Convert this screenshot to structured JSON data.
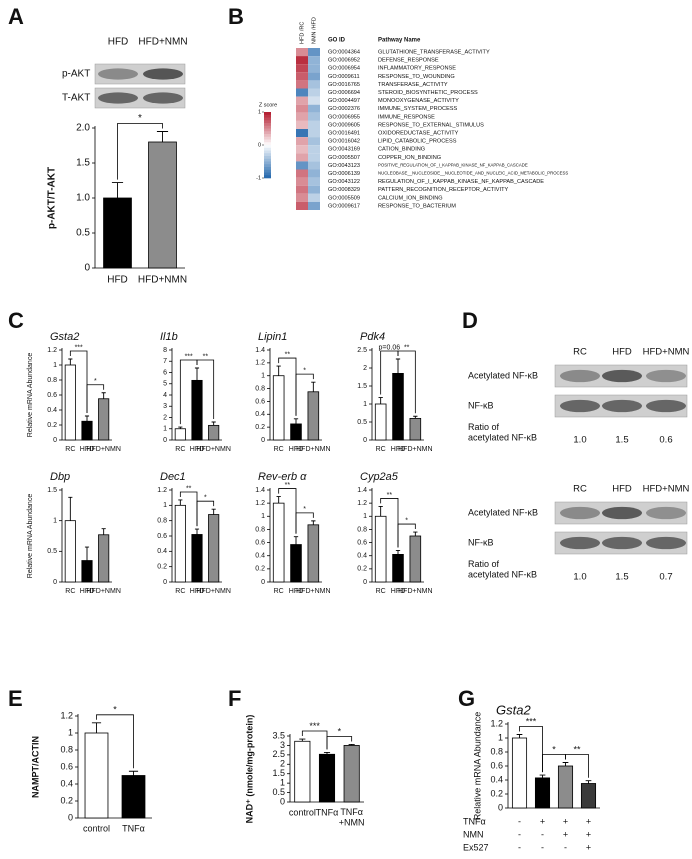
{
  "panel_labels": [
    "A",
    "B",
    "C",
    "D",
    "E",
    "F",
    "G"
  ],
  "chart_data": [
    {
      "type": "bar",
      "ylabel": "p-AKT/T-AKT",
      "categories": [
        "HFD",
        "HFD+NMN"
      ],
      "values": [
        1.0,
        1.8
      ],
      "errors": [
        0.22,
        0.15
      ],
      "colors": [
        "#000000",
        "#8c8c8c"
      ],
      "ylim": [
        0,
        2
      ],
      "yticks": [
        0,
        0.5,
        {
          "value": 1,
          "label": "1.0"
        },
        1.5,
        {
          "value": 2,
          "label": "2.0"
        }
      ],
      "significance": [
        {
          "pair": [
            0,
            1
          ],
          "label": "*"
        }
      ]
    },
    {
      "type": "bar",
      "title": "Gsta2",
      "ylabel": "Relative mRNA Abundance",
      "categories": [
        "RC",
        "HFD",
        "HFD+NMN"
      ],
      "values": [
        1.0,
        0.25,
        0.55
      ],
      "errors": [
        0.08,
        0.07,
        0.08
      ],
      "colors": [
        "#ffffff",
        "#000000",
        "#8c8c8c"
      ],
      "ylim": [
        0,
        1.2
      ],
      "yticks": [
        0,
        0.2,
        0.4,
        0.6,
        0.8,
        1,
        1.2
      ],
      "significance": [
        {
          "pair": [
            0,
            1
          ],
          "label": "***"
        },
        {
          "pair": [
            1,
            2
          ],
          "label": "*"
        }
      ]
    },
    {
      "type": "bar",
      "title": "Il1b",
      "categories": [
        "RC",
        "HFD",
        "HFD+NMN"
      ],
      "values": [
        1.0,
        5.3,
        1.3
      ],
      "errors": [
        0.15,
        1.1,
        0.3
      ],
      "colors": [
        "#ffffff",
        "#000000",
        "#8c8c8c"
      ],
      "ylim": [
        0,
        8
      ],
      "yticks": [
        0,
        1,
        2,
        3,
        4,
        5,
        6,
        7,
        8
      ],
      "significance": [
        {
          "pair": [
            0,
            1
          ],
          "label": "***"
        },
        {
          "pair": [
            1,
            2
          ],
          "label": "**"
        }
      ]
    },
    {
      "type": "bar",
      "title": "Lipin1",
      "categories": [
        "RC",
        "HFD",
        "HFD+NMN"
      ],
      "values": [
        1.0,
        0.25,
        0.75
      ],
      "errors": [
        0.15,
        0.08,
        0.15
      ],
      "colors": [
        "#ffffff",
        "#000000",
        "#8c8c8c"
      ],
      "ylim": [
        0,
        1.4
      ],
      "yticks": [
        0,
        0.2,
        0.4,
        0.6,
        0.8,
        1,
        1.2,
        1.4
      ],
      "significance": [
        {
          "pair": [
            0,
            1
          ],
          "label": "**"
        },
        {
          "pair": [
            1,
            2
          ],
          "label": "*"
        }
      ]
    },
    {
      "type": "bar",
      "title": "Pdk4",
      "categories": [
        "RC",
        "HFD",
        "HFD+NMN"
      ],
      "values": [
        1.0,
        1.85,
        0.6
      ],
      "errors": [
        0.18,
        0.4,
        0.06
      ],
      "colors": [
        "#ffffff",
        "#000000",
        "#8c8c8c"
      ],
      "ylim": [
        0,
        2.5
      ],
      "yticks": [
        0,
        0.5,
        1,
        1.5,
        2,
        2.5
      ],
      "significance": [
        {
          "pair": [
            0,
            1
          ],
          "label": "p=0.06"
        },
        {
          "pair": [
            1,
            2
          ],
          "label": "**"
        }
      ]
    },
    {
      "type": "bar",
      "title": "Dbp",
      "ylabel": "Relative mRNA Abundance",
      "categories": [
        "RC",
        "HFD",
        "HFD+NMN"
      ],
      "values": [
        1.0,
        0.35,
        0.77
      ],
      "errors": [
        0.38,
        0.22,
        0.1
      ],
      "colors": [
        "#ffffff",
        "#000000",
        "#8c8c8c"
      ],
      "ylim": [
        0,
        1.5
      ],
      "yticks": [
        0,
        0.5,
        1,
        1.5
      ],
      "significance": []
    },
    {
      "type": "bar",
      "title": "Dec1",
      "categories": [
        "RC",
        "HFD",
        "HFD+NMN"
      ],
      "values": [
        1.0,
        0.62,
        0.88
      ],
      "errors": [
        0.07,
        0.07,
        0.07
      ],
      "colors": [
        "#ffffff",
        "#000000",
        "#8c8c8c"
      ],
      "ylim": [
        0,
        1.2
      ],
      "yticks": [
        0,
        0.2,
        0.4,
        0.6,
        0.8,
        1,
        1.2
      ],
      "significance": [
        {
          "pair": [
            0,
            1
          ],
          "label": "**"
        },
        {
          "pair": [
            1,
            2
          ],
          "label": "*"
        }
      ]
    },
    {
      "type": "bar",
      "title": "Rev-erb α",
      "categories": [
        "RC",
        "HFD",
        "HFD+NMN"
      ],
      "values": [
        1.2,
        0.57,
        0.87
      ],
      "errors": [
        0.1,
        0.12,
        0.06
      ],
      "colors": [
        "#ffffff",
        "#000000",
        "#8c8c8c"
      ],
      "ylim": [
        0,
        1.4
      ],
      "yticks": [
        0,
        0.2,
        0.4,
        0.6,
        0.8,
        1,
        1.2,
        1.4
      ],
      "significance": [
        {
          "pair": [
            0,
            1
          ],
          "label": "**"
        },
        {
          "pair": [
            1,
            2
          ],
          "label": "*"
        }
      ]
    },
    {
      "type": "bar",
      "title": "Cyp2a5",
      "categories": [
        "RC",
        "HFD",
        "HFD+NMN"
      ],
      "values": [
        1.0,
        0.42,
        0.7
      ],
      "errors": [
        0.15,
        0.06,
        0.06
      ],
      "colors": [
        "#ffffff",
        "#000000",
        "#8c8c8c"
      ],
      "ylim": [
        0,
        1.4
      ],
      "yticks": [
        0,
        0.2,
        0.4,
        0.6,
        0.8,
        1,
        1.2,
        1.4
      ],
      "significance": [
        {
          "pair": [
            0,
            1
          ],
          "label": "**"
        },
        {
          "pair": [
            1,
            2
          ],
          "label": "*"
        }
      ]
    },
    {
      "type": "bar",
      "ylabel": "NAMPT/ACTIN",
      "categories": [
        "control",
        "TNFα"
      ],
      "values": [
        1.0,
        0.5
      ],
      "errors": [
        0.12,
        0.05
      ],
      "colors": [
        "#ffffff",
        "#000000"
      ],
      "ylim": [
        0,
        1.2
      ],
      "yticks": [
        0,
        0.2,
        0.4,
        0.6,
        0.8,
        1,
        1.2
      ],
      "significance": [
        {
          "pair": [
            0,
            1
          ],
          "label": "*"
        }
      ]
    },
    {
      "type": "bar",
      "ylabel": "NAD⁺ (nmole/mg-protein)",
      "categories": [
        "control",
        "TNFα",
        "TNFα\n+NMN"
      ],
      "values": [
        3.22,
        2.53,
        3.0
      ],
      "errors": [
        0.12,
        0.1,
        0.05
      ],
      "colors": [
        "#ffffff",
        "#000000",
        "#8c8c8c"
      ],
      "ylim": [
        0,
        3.5
      ],
      "yticks": [
        0,
        0.5,
        1,
        1.5,
        2,
        2.5,
        3,
        3.5
      ],
      "significance": [
        {
          "pair": [
            0,
            1
          ],
          "label": "***"
        },
        {
          "pair": [
            1,
            2
          ],
          "label": "*"
        }
      ]
    },
    {
      "type": "bar",
      "title": "Gsta2",
      "ylabel": "Relative mRNA Abundance",
      "values": [
        1.0,
        0.43,
        0.6,
        0.35
      ],
      "errors": [
        0.05,
        0.04,
        0.05,
        0.04
      ],
      "colors": [
        "#ffffff",
        "#000000",
        "#8c8c8c",
        "#3a3a3a"
      ],
      "ylim": [
        0,
        1.2
      ],
      "yticks": [
        0,
        0.2,
        0.4,
        0.6,
        0.8,
        1,
        1.2
      ],
      "significance": [
        {
          "pair": [
            0,
            1
          ],
          "label": "***"
        },
        {
          "pair": [
            1,
            2
          ],
          "label": "*"
        },
        {
          "pair": [
            2,
            3
          ],
          "label": "**"
        }
      ],
      "conditions": [
        {
          "name": "TNFα",
          "marks": [
            "-",
            "+",
            "+",
            "+"
          ]
        },
        {
          "name": "NMN",
          "marks": [
            "-",
            "-",
            "+",
            "+"
          ]
        },
        {
          "name": "Ex527",
          "marks": [
            "-",
            "-",
            "-",
            "+"
          ]
        }
      ]
    }
  ],
  "blot_a": {
    "lanes": [
      "HFD",
      "HFD+NMN"
    ],
    "rows": [
      "p-AKT",
      "T-AKT"
    ]
  },
  "heatmap": {
    "columns": [
      "HFD /RC",
      "NMN /HFD"
    ],
    "headers": [
      "GO ID",
      "Pathway Name"
    ],
    "colorbar_label": "Z score",
    "zlim": [
      -1,
      1
    ],
    "zticks": [
      1,
      0,
      -1
    ],
    "rows": [
      {
        "id": "GO:0004364",
        "name": "GLUTATHIONE_TRANSFERASE_ACTIVITY",
        "values": [
          0.5,
          -0.7
        ]
      },
      {
        "id": "GO:0006952",
        "name": "DEFENSE_RESPONSE",
        "values": [
          0.9,
          -0.5
        ]
      },
      {
        "id": "GO:0006954",
        "name": "INFLAMMATORY_RESPONSE",
        "values": [
          0.8,
          -0.5
        ]
      },
      {
        "id": "GO:0009611",
        "name": "RESPONSE_TO_WOUNDING",
        "values": [
          0.7,
          -0.6
        ]
      },
      {
        "id": "GO:0016765",
        "name": "TRANSFERASE_ACTIVITY",
        "values": [
          0.6,
          -0.4
        ]
      },
      {
        "id": "GO:0006694",
        "name": "STEROID_BIOSYNTHETIC_PROCESS",
        "values": [
          -0.8,
          -0.3
        ]
      },
      {
        "id": "GO:0004497",
        "name": "MONOOXYGENASE_ACTIVITY",
        "values": [
          0.4,
          -0.2
        ]
      },
      {
        "id": "GO:0002376",
        "name": "IMMUNE_SYSTEM_PROCESS",
        "values": [
          0.5,
          -0.5
        ]
      },
      {
        "id": "GO:0006955",
        "name": "IMMUNE_RESPONSE",
        "values": [
          0.4,
          -0.4
        ]
      },
      {
        "id": "GO:0009605",
        "name": "RESPONSE_TO_EXTERNAL_STIMULUS",
        "values": [
          0.3,
          -0.3
        ]
      },
      {
        "id": "GO:0016491",
        "name": "OXIDOREDUCTASE_ACTIVITY",
        "values": [
          -0.9,
          -0.3
        ]
      },
      {
        "id": "GO:0016042",
        "name": "LIPID_CATABOLIC_PROCESS",
        "values": [
          0.4,
          -0.4
        ]
      },
      {
        "id": "GO:0043169",
        "name": "CATION_BINDING",
        "values": [
          0.3,
          -0.3
        ]
      },
      {
        "id": "GO:0005507",
        "name": "COPPER_ION_BINDING",
        "values": [
          0.4,
          -0.3
        ]
      },
      {
        "id": "GO:0043123",
        "name": "POSITIVE_REGULATION_OF_I_KAPPAB_KINASE_NF_KAPPAB_CASCADE",
        "values": [
          -0.7,
          -0.4
        ]
      },
      {
        "id": "GO:0006139",
        "name": "NUCLEOBASE__NUCLEOSIDE__NUCLEOTIDE_AND_NUCLEIC_ACID_METABOLIC_PROCESS",
        "values": [
          0.6,
          -0.5
        ]
      },
      {
        "id": "GO:0043122",
        "name": "REGULATION_OF_I_KAPPAB_KINASE_NF_KAPPAB_CASCADE",
        "values": [
          0.5,
          -0.4
        ]
      },
      {
        "id": "GO:0008329",
        "name": "PATTERN_RECOGNITION_RECEPTOR_ACTIVITY",
        "values": [
          0.6,
          -0.5
        ]
      },
      {
        "id": "GO:0005509",
        "name": "CALCIUM_ION_BINDING",
        "values": [
          0.5,
          -0.3
        ]
      },
      {
        "id": "GO:0009617",
        "name": "RESPONSE_TO_BACTERIUM",
        "values": [
          0.7,
          -0.6
        ]
      }
    ]
  },
  "blot_d": [
    {
      "lanes": [
        "RC",
        "HFD",
        "HFD+NMN"
      ],
      "rows": [
        "Acetylated NF-κB",
        "NF-κB"
      ],
      "ratio_label": "Ratio of\nacetylated NF-κB",
      "ratios": [
        "1.0",
        "1.5",
        "0.6"
      ]
    },
    {
      "lanes": [
        "RC",
        "HFD",
        "HFD+NMN"
      ],
      "rows": [
        "Acetylated NF-κB",
        "NF-κB"
      ],
      "ratio_label": "Ratio of\nacetylated NF-κB",
      "ratios": [
        "1.0",
        "1.5",
        "0.7"
      ]
    }
  ]
}
